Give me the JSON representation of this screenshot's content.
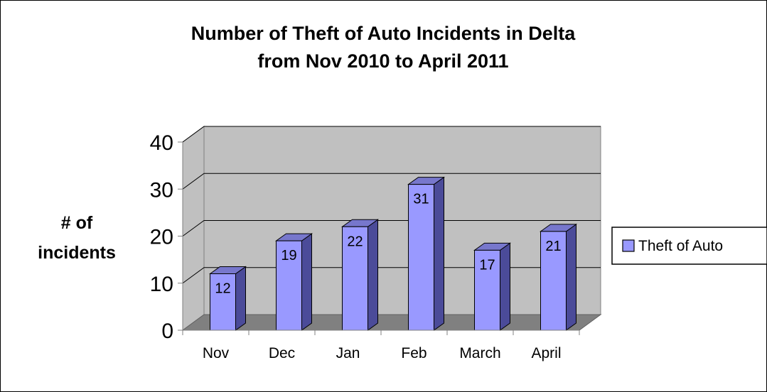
{
  "chart_data": {
    "type": "bar",
    "title_line1": "Number of Theft of Auto Incidents in Delta",
    "title_line2": "from Nov 2010 to April 2011",
    "ylabel_line1": "# of",
    "ylabel_line2": "incidents",
    "xlabel": "",
    "categories": [
      "Nov",
      "Dec",
      "Jan",
      "Feb",
      "March",
      "April"
    ],
    "series": [
      {
        "name": "Theft of Auto",
        "values": [
          12,
          19,
          22,
          31,
          17,
          21
        ]
      }
    ],
    "ylim": [
      0,
      40
    ],
    "yticks": [
      0,
      10,
      20,
      30,
      40
    ],
    "grid": true,
    "legend_position": "right",
    "style": "3d-column",
    "colors": {
      "bar_front": "#9999ff",
      "bar_side": "#4b4b99",
      "bar_top": "#7777cc",
      "back_wall": "#c0c0c0",
      "side_wall": "#c0c0c0",
      "floor": "#808080",
      "gridline": "#000000"
    }
  }
}
